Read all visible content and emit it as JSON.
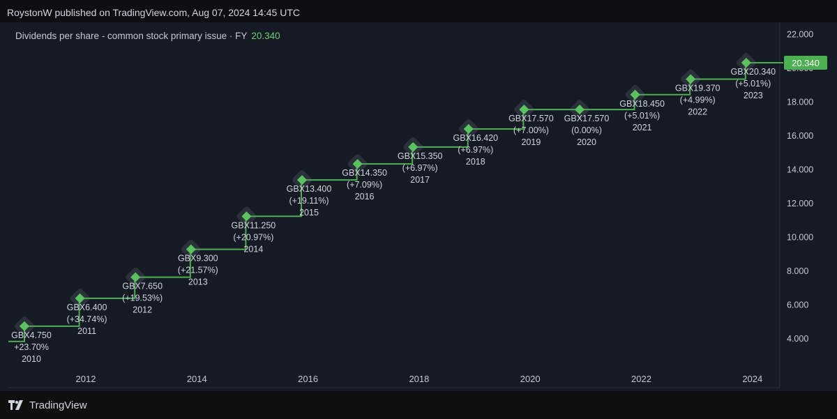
{
  "header": {
    "publisher_text": "RoystonW published on TradingView.com, Aug 07, 2024 14:45 UTC"
  },
  "legend": {
    "label": "Dividends per share - common stock primary issue · FY",
    "value": "20.340"
  },
  "price_tag": "20.340",
  "footer": {
    "brand": "TradingView"
  },
  "colors": {
    "background": "#161a25",
    "line": "#4caf50",
    "marker": "#5cc15f",
    "text": "#d1d4dc",
    "tag_bg": "#4caf50"
  },
  "chart_data": {
    "type": "line",
    "style": "step",
    "ylim": [
      2.6,
      22.4
    ],
    "y_ticks": [
      "4.000",
      "6.000",
      "8.000",
      "10.000",
      "12.000",
      "14.000",
      "16.000",
      "18.000",
      "20.000",
      "22.000"
    ],
    "x_ticks": [
      "2012",
      "2014",
      "2016",
      "2018",
      "2020",
      "2022",
      "2024"
    ],
    "series": [
      {
        "points": [
          {
            "x": "2010",
            "value": 4.75,
            "label": "GBX4.750",
            "change": "+23.70%"
          },
          {
            "x": "2011",
            "value": 6.4,
            "label": "GBX6.400",
            "change": "(+34.74%)"
          },
          {
            "x": "2012",
            "value": 7.65,
            "label": "GBX7.650",
            "change": "(+19.53%)"
          },
          {
            "x": "2013",
            "value": 9.3,
            "label": "GBX9.300",
            "change": "(+21.57%)"
          },
          {
            "x": "2014",
            "value": 11.25,
            "label": "GBX11.250",
            "change": "(+20.97%)"
          },
          {
            "x": "2015",
            "value": 13.4,
            "label": "GBX13.400",
            "change": "(+19.11%)"
          },
          {
            "x": "2016",
            "value": 14.35,
            "label": "GBX14.350",
            "change": "(+7.09%)"
          },
          {
            "x": "2017",
            "value": 15.35,
            "label": "GBX15.350",
            "change": "(+6.97%)"
          },
          {
            "x": "2018",
            "value": 16.42,
            "label": "GBX16.420",
            "change": "(+6.97%)"
          },
          {
            "x": "2019",
            "value": 17.57,
            "label": "GBX17.570",
            "change": "(+7.00%)"
          },
          {
            "x": "2020",
            "value": 17.57,
            "label": "GBX17.570",
            "change": "(0.00%)"
          },
          {
            "x": "2021",
            "value": 18.45,
            "label": "GBX18.450",
            "change": "(+5.01%)"
          },
          {
            "x": "2022",
            "value": 19.37,
            "label": "GBX19.370",
            "change": "(+4.99%)"
          },
          {
            "x": "2023",
            "value": 20.34,
            "label": "GBX20.340",
            "change": "(+5.01%)"
          }
        ]
      }
    ]
  }
}
